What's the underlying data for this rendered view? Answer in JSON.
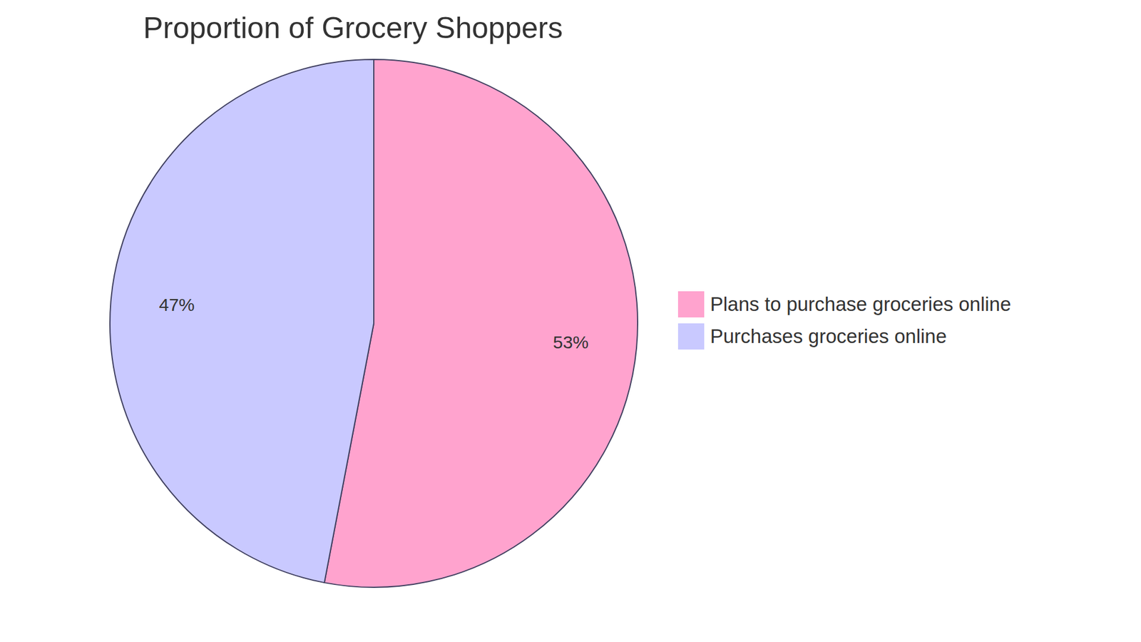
{
  "chart_data": {
    "type": "pie",
    "title": "Proportion of Grocery Shoppers",
    "categories": [
      "Plans to purchase groceries online",
      "Purchases groceries online"
    ],
    "values": [
      53,
      47
    ],
    "value_labels": [
      "53%",
      "47%"
    ],
    "colors": [
      "#ffa3ce",
      "#c9c9ff"
    ],
    "data_labels": true,
    "legend": "right"
  }
}
